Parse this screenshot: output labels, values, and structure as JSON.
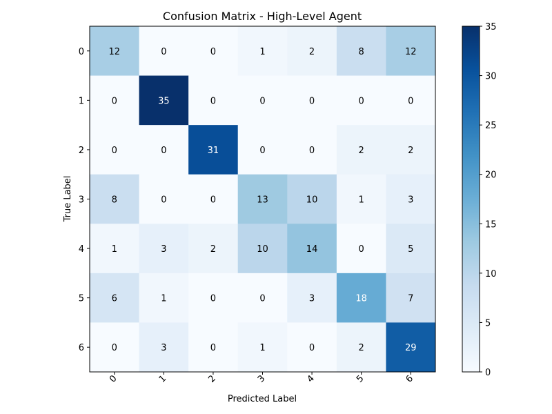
{
  "chart_data": {
    "type": "heatmap",
    "title": "Confusion Matrix - High-Level Agent",
    "xlabel": "Predicted Label",
    "ylabel": "True Label",
    "x_categories": [
      "0",
      "1",
      "2",
      "3",
      "4",
      "5",
      "6"
    ],
    "y_categories": [
      "0",
      "1",
      "2",
      "3",
      "4",
      "5",
      "6"
    ],
    "values": [
      [
        12,
        0,
        0,
        1,
        2,
        8,
        12
      ],
      [
        0,
        35,
        0,
        0,
        0,
        0,
        0
      ],
      [
        0,
        0,
        31,
        0,
        0,
        2,
        2
      ],
      [
        8,
        0,
        0,
        13,
        10,
        1,
        3
      ],
      [
        1,
        3,
        2,
        10,
        14,
        0,
        5
      ],
      [
        6,
        1,
        0,
        0,
        3,
        18,
        7
      ],
      [
        0,
        3,
        0,
        1,
        0,
        2,
        29
      ]
    ],
    "colorbar": {
      "colormap": "Blues",
      "range": [
        0,
        35
      ],
      "ticks": [
        "0",
        "5",
        "10",
        "15",
        "20",
        "25",
        "30",
        "35"
      ]
    },
    "xtick_rotation_deg": 45,
    "grid": false
  }
}
